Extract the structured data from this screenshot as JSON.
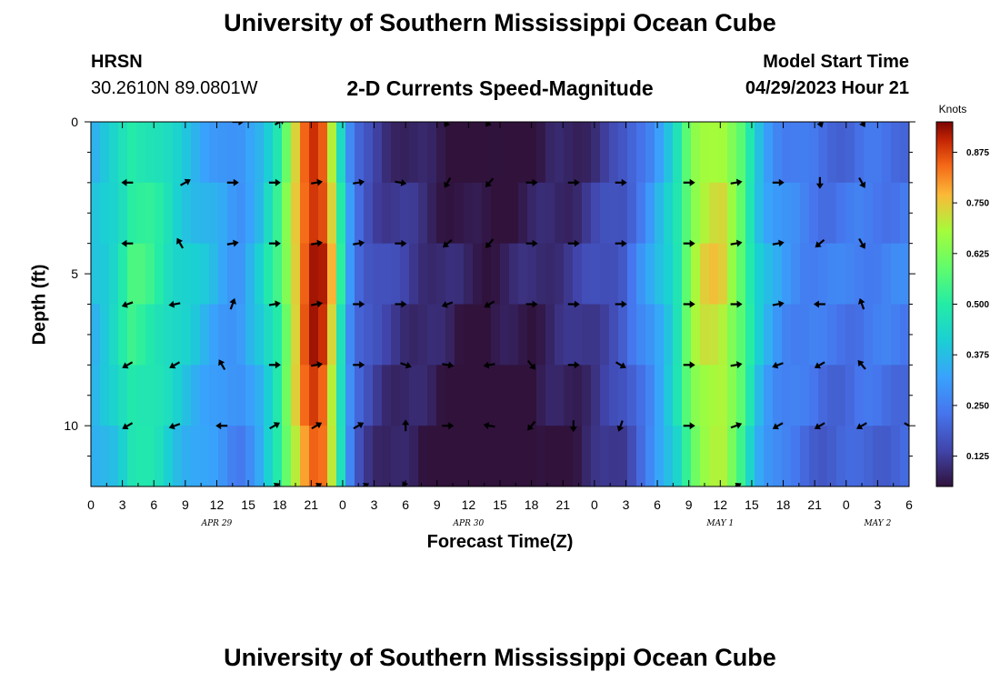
{
  "header": {
    "title": "University of Southern Mississippi Ocean Cube",
    "station": "HRSN",
    "coords": "30.2610N  89.0801W",
    "subtitle": "2-D Currents Speed-Magnitude",
    "start_label": "Model Start Time",
    "start_value": "04/29/2023 Hour 21"
  },
  "footer": {
    "title": "University of Southern Mississippi Ocean Cube"
  },
  "chart_data": {
    "type": "heatmap",
    "title": "2-D Currents Speed-Magnitude",
    "xlabel": "Forecast Time(Z)",
    "ylabel": "Depth (ft)",
    "x_unit": "hours since 04/29/2023 00Z",
    "x_range": [
      0,
      78
    ],
    "y_range": [
      0,
      12
    ],
    "y_inverted": true,
    "x_ticks": [
      0,
      3,
      6,
      9,
      12,
      15,
      18,
      21,
      24,
      27,
      30,
      33,
      36,
      39,
      42,
      45,
      48,
      51,
      54,
      57,
      60,
      63,
      66,
      69,
      72,
      75,
      78
    ],
    "x_tick_labels": [
      "0",
      "3",
      "6",
      "9",
      "12",
      "15",
      "18",
      "21",
      "0",
      "3",
      "6",
      "9",
      "12",
      "15",
      "18",
      "21",
      "0",
      "3",
      "6",
      "9",
      "12",
      "15",
      "18",
      "21",
      "0",
      "3",
      "6"
    ],
    "y_ticks": [
      0,
      5,
      10
    ],
    "y_tick_labels": [
      "0",
      "5",
      "10"
    ],
    "day_labels": [
      {
        "x": 12,
        "text": "APR 29"
      },
      {
        "x": 36,
        "text": "APR 30"
      },
      {
        "x": 60,
        "text": "MAY 1"
      },
      {
        "x": 75,
        "text": "MAY 2"
      }
    ],
    "colorbar": {
      "unit": "Knots",
      "range": [
        0.05,
        0.95
      ],
      "ticks": [
        0.125,
        0.25,
        0.375,
        0.5,
        0.625,
        0.75,
        0.875
      ],
      "tick_labels": [
        "0.125",
        "0.250",
        "0.375",
        "0.500",
        "0.625",
        "0.750",
        "0.875"
      ]
    },
    "speed_time_profile": {
      "hours": [
        0,
        2,
        4,
        6,
        8,
        10,
        12,
        14,
        16,
        18,
        20,
        21,
        22,
        23,
        24,
        25,
        26,
        27,
        28,
        30,
        32,
        34,
        36,
        38,
        40,
        42,
        44,
        46,
        48,
        50,
        51,
        52,
        53,
        54,
        55,
        56,
        57,
        58,
        60,
        62,
        64,
        66,
        68,
        70,
        72,
        74,
        76,
        78
      ],
      "speed_knots": [
        0.38,
        0.44,
        0.55,
        0.52,
        0.45,
        0.4,
        0.35,
        0.3,
        0.4,
        0.55,
        0.83,
        0.93,
        0.92,
        0.75,
        0.45,
        0.25,
        0.2,
        0.17,
        0.15,
        0.13,
        0.11,
        0.09,
        0.07,
        0.07,
        0.08,
        0.09,
        0.11,
        0.12,
        0.15,
        0.18,
        0.2,
        0.26,
        0.3,
        0.36,
        0.42,
        0.5,
        0.63,
        0.72,
        0.75,
        0.6,
        0.38,
        0.3,
        0.27,
        0.25,
        0.25,
        0.26,
        0.26,
        0.26
      ]
    },
    "current_vectors": [
      {
        "hour": 3.5,
        "depth": 2,
        "dir": 270
      },
      {
        "hour": 9,
        "depth": 2,
        "dir": 60
      },
      {
        "hour": 13.5,
        "depth": 2,
        "dir": 90
      },
      {
        "hour": 17.5,
        "depth": 2,
        "dir": 90
      },
      {
        "hour": 21.5,
        "depth": 2,
        "dir": 80
      },
      {
        "hour": 25.5,
        "depth": 2,
        "dir": 80
      },
      {
        "hour": 29.5,
        "depth": 2,
        "dir": 100
      },
      {
        "hour": 34,
        "depth": 2,
        "dir": 210
      },
      {
        "hour": 38,
        "depth": 2,
        "dir": 220
      },
      {
        "hour": 42,
        "depth": 2,
        "dir": 90
      },
      {
        "hour": 46,
        "depth": 2,
        "dir": 90
      },
      {
        "hour": 50.5,
        "depth": 2,
        "dir": 90
      },
      {
        "hour": 57,
        "depth": 2,
        "dir": 90
      },
      {
        "hour": 61.5,
        "depth": 2,
        "dir": 80
      },
      {
        "hour": 65.5,
        "depth": 2,
        "dir": 90
      },
      {
        "hour": 69.5,
        "depth": 2,
        "dir": 180
      },
      {
        "hour": 73.5,
        "depth": 2,
        "dir": 150
      },
      {
        "hour": 3.5,
        "depth": 4,
        "dir": 270
      },
      {
        "hour": 8.5,
        "depth": 4,
        "dir": 330
      },
      {
        "hour": 13.5,
        "depth": 4,
        "dir": 80
      },
      {
        "hour": 17.5,
        "depth": 4,
        "dir": 90
      },
      {
        "hour": 21.5,
        "depth": 4,
        "dir": 80
      },
      {
        "hour": 25.5,
        "depth": 4,
        "dir": 80
      },
      {
        "hour": 29.5,
        "depth": 4,
        "dir": 90
      },
      {
        "hour": 34,
        "depth": 4,
        "dir": 230
      },
      {
        "hour": 38,
        "depth": 4,
        "dir": 220
      },
      {
        "hour": 42,
        "depth": 4,
        "dir": 90
      },
      {
        "hour": 46,
        "depth": 4,
        "dir": 90
      },
      {
        "hour": 50.5,
        "depth": 4,
        "dir": 90
      },
      {
        "hour": 57,
        "depth": 4,
        "dir": 90
      },
      {
        "hour": 61.5,
        "depth": 4,
        "dir": 80
      },
      {
        "hour": 65.5,
        "depth": 4,
        "dir": 80
      },
      {
        "hour": 69.5,
        "depth": 4,
        "dir": 230
      },
      {
        "hour": 73.5,
        "depth": 4,
        "dir": 150
      },
      {
        "hour": 3.5,
        "depth": 6,
        "dir": 250
      },
      {
        "hour": 8,
        "depth": 6,
        "dir": 260
      },
      {
        "hour": 13.5,
        "depth": 6,
        "dir": 20
      },
      {
        "hour": 17.5,
        "depth": 6,
        "dir": 80
      },
      {
        "hour": 21.5,
        "depth": 6,
        "dir": 80
      },
      {
        "hour": 25.5,
        "depth": 6,
        "dir": 90
      },
      {
        "hour": 29.5,
        "depth": 6,
        "dir": 90
      },
      {
        "hour": 34,
        "depth": 6,
        "dir": 250
      },
      {
        "hour": 38,
        "depth": 6,
        "dir": 240
      },
      {
        "hour": 42,
        "depth": 6,
        "dir": 90
      },
      {
        "hour": 46,
        "depth": 6,
        "dir": 90
      },
      {
        "hour": 50.5,
        "depth": 6,
        "dir": 90
      },
      {
        "hour": 57,
        "depth": 6,
        "dir": 90
      },
      {
        "hour": 61.5,
        "depth": 6,
        "dir": 90
      },
      {
        "hour": 65.5,
        "depth": 6,
        "dir": 80
      },
      {
        "hour": 69.5,
        "depth": 6,
        "dir": 270
      },
      {
        "hour": 73.5,
        "depth": 6,
        "dir": 340
      },
      {
        "hour": 3.5,
        "depth": 8,
        "dir": 240
      },
      {
        "hour": 8,
        "depth": 8,
        "dir": 240
      },
      {
        "hour": 12.5,
        "depth": 8,
        "dir": 330
      },
      {
        "hour": 17.5,
        "depth": 8,
        "dir": 90
      },
      {
        "hour": 21.5,
        "depth": 8,
        "dir": 80
      },
      {
        "hour": 25.5,
        "depth": 8,
        "dir": 90
      },
      {
        "hour": 30,
        "depth": 8,
        "dir": 110
      },
      {
        "hour": 34,
        "depth": 8,
        "dir": 100
      },
      {
        "hour": 38,
        "depth": 8,
        "dir": 260
      },
      {
        "hour": 42,
        "depth": 8,
        "dir": 140
      },
      {
        "hour": 46,
        "depth": 8,
        "dir": 90
      },
      {
        "hour": 50.5,
        "depth": 8,
        "dir": 120
      },
      {
        "hour": 57,
        "depth": 8,
        "dir": 90
      },
      {
        "hour": 61.5,
        "depth": 8,
        "dir": 80
      },
      {
        "hour": 65.5,
        "depth": 8,
        "dir": 250
      },
      {
        "hour": 69.5,
        "depth": 8,
        "dir": 240
      },
      {
        "hour": 73.5,
        "depth": 8,
        "dir": 320
      },
      {
        "hour": 3.5,
        "depth": 10,
        "dir": 240
      },
      {
        "hour": 8,
        "depth": 10,
        "dir": 250
      },
      {
        "hour": 12.5,
        "depth": 10,
        "dir": 270
      },
      {
        "hour": 17.5,
        "depth": 10,
        "dir": 60
      },
      {
        "hour": 21.5,
        "depth": 10,
        "dir": 60
      },
      {
        "hour": 25.5,
        "depth": 10,
        "dir": 60
      },
      {
        "hour": 30,
        "depth": 10,
        "dir": 0
      },
      {
        "hour": 34,
        "depth": 10,
        "dir": 90
      },
      {
        "hour": 38,
        "depth": 10,
        "dir": 280
      },
      {
        "hour": 42,
        "depth": 10,
        "dir": 220
      },
      {
        "hour": 46,
        "depth": 10,
        "dir": 180
      },
      {
        "hour": 50.5,
        "depth": 10,
        "dir": 200
      },
      {
        "hour": 57,
        "depth": 10,
        "dir": 90
      },
      {
        "hour": 61.5,
        "depth": 10,
        "dir": 70
      },
      {
        "hour": 65.5,
        "depth": 10,
        "dir": 240
      },
      {
        "hour": 69.5,
        "depth": 10,
        "dir": 240
      },
      {
        "hour": 73.5,
        "depth": 10,
        "dir": 240
      },
      {
        "hour": 78,
        "depth": 10,
        "dir": 120
      },
      {
        "hour": 14,
        "depth": 0,
        "dir": 90
      },
      {
        "hour": 18,
        "depth": 0,
        "dir": 60
      },
      {
        "hour": 34,
        "depth": 0,
        "dir": 210
      },
      {
        "hour": 38,
        "depth": 0,
        "dir": 220
      },
      {
        "hour": 69.5,
        "depth": 0,
        "dir": 160
      },
      {
        "hour": 73.5,
        "depth": 0,
        "dir": 150
      },
      {
        "hour": 17.5,
        "depth": 12,
        "dir": 60
      },
      {
        "hour": 21.5,
        "depth": 12,
        "dir": 60
      },
      {
        "hour": 26,
        "depth": 12,
        "dir": 60
      },
      {
        "hour": 30,
        "depth": 12,
        "dir": 330
      },
      {
        "hour": 61.5,
        "depth": 12,
        "dir": 60
      }
    ]
  }
}
